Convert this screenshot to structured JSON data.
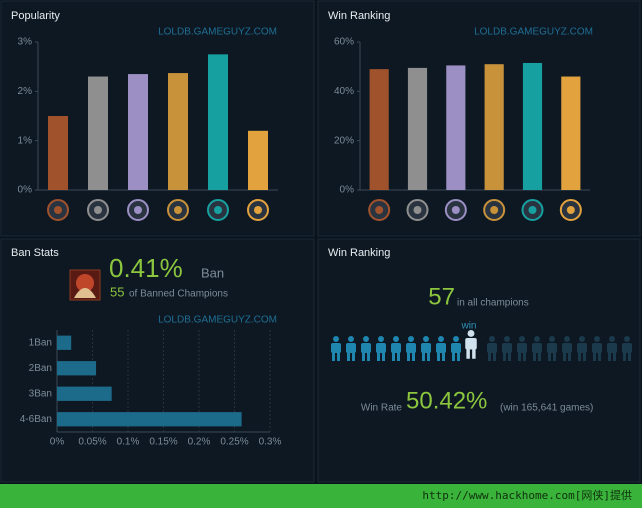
{
  "chart_data": [
    {
      "type": "bar",
      "title": "Popularity",
      "watermark": "LOLDB.GAMEGUYZ.COM",
      "values": [
        1.5,
        2.3,
        2.35,
        2.37,
        2.75,
        1.2
      ],
      "colors": [
        "#a0522d",
        "#8f8f8f",
        "#9b8fc4",
        "#c8923a",
        "#17a0a0",
        "#e2a23e"
      ],
      "ylim": [
        0,
        3
      ],
      "yticks": [
        {
          "value": 0,
          "label": "0%"
        },
        {
          "value": 1,
          "label": "1%"
        },
        {
          "value": 2,
          "label": "2%"
        },
        {
          "value": 3,
          "label": "3%"
        }
      ]
    },
    {
      "type": "bar",
      "title": "Win Ranking",
      "watermark": "LOLDB.GAMEGUYZ.COM",
      "values": [
        49,
        49.5,
        50.5,
        51,
        51.5,
        46
      ],
      "colors": [
        "#a0522d",
        "#8f8f8f",
        "#9b8fc4",
        "#c8923a",
        "#17a0a0",
        "#e2a23e"
      ],
      "ylim": [
        0,
        60
      ],
      "yticks": [
        {
          "value": 0,
          "label": "0%"
        },
        {
          "value": 20,
          "label": "20%"
        },
        {
          "value": 40,
          "label": "40%"
        },
        {
          "value": 60,
          "label": "60%"
        }
      ]
    },
    {
      "type": "barh",
      "watermark": "LOLDB.GAMEGUYZ.COM",
      "categories": [
        "1Ban",
        "2Ban",
        "3Ban",
        "4-6Ban"
      ],
      "values": [
        0.02,
        0.055,
        0.077,
        0.26
      ],
      "color": "#1d6b8a",
      "grid": true,
      "xlim": [
        0,
        0.3
      ],
      "xticks": [
        {
          "value": 0,
          "label": "0%"
        },
        {
          "value": 0.05,
          "label": "0.05%"
        },
        {
          "value": 0.1,
          "label": "0.1%"
        },
        {
          "value": 0.15,
          "label": "0.15%"
        },
        {
          "value": 0.2,
          "label": "0.2%"
        },
        {
          "value": 0.25,
          "label": "0.25%"
        },
        {
          "value": 0.3,
          "label": "0.3%"
        }
      ]
    }
  ],
  "ban_stats": {
    "title": "Ban Stats",
    "rate": "0.41%",
    "rate_label": "Ban",
    "count": "55",
    "count_label": "of Banned Champions"
  },
  "win_panel": {
    "title": "Win Ranking",
    "rank": "57",
    "rank_label": "in all champions",
    "win_marker": "win",
    "rate_label": "Win Rate",
    "rate": "50.42%",
    "games": "(win 165,641 games)"
  },
  "footer": "http://www.hackhome.com[网侠]提供"
}
